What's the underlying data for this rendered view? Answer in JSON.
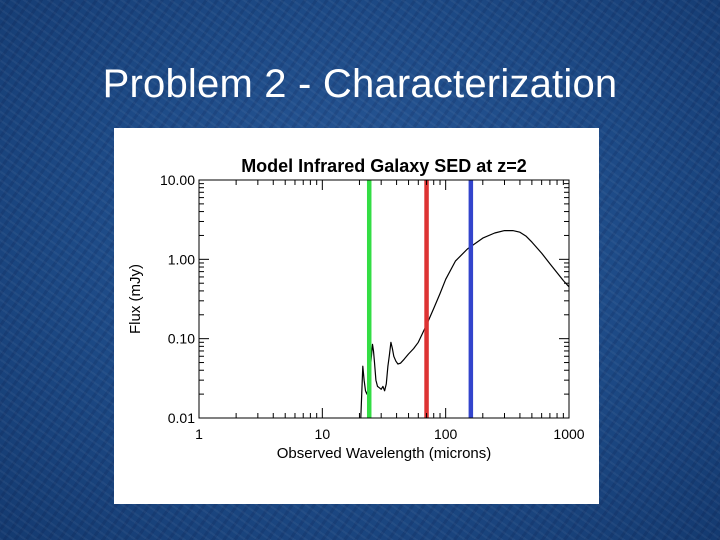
{
  "slide": {
    "title": "Problem 2 - Characterization"
  },
  "colors": {
    "background": "#1d4a86",
    "title_text": "#ffffff",
    "plot_background": "#ffffff",
    "sed_line": "#000000",
    "band_green": "#33dd44",
    "band_red": "#dd3333",
    "band_blue": "#3344cc"
  },
  "chart_data": {
    "type": "line",
    "title": "Model Infrared Galaxy SED at z=2",
    "xlabel": "Observed Wavelength (microns)",
    "ylabel": "Flux (mJy)",
    "x_scale": "log",
    "y_scale": "log",
    "xlim": [
      1,
      1000
    ],
    "ylim": [
      0.01,
      10
    ],
    "x_ticks": [
      {
        "value": 1,
        "label": "1"
      },
      {
        "value": 10,
        "label": "10"
      },
      {
        "value": 100,
        "label": "100"
      },
      {
        "value": 1000,
        "label": "1000"
      }
    ],
    "y_ticks": [
      {
        "value": 0.01,
        "label": "0.01"
      },
      {
        "value": 0.1,
        "label": "0.10"
      },
      {
        "value": 1,
        "label": "1.00"
      },
      {
        "value": 10,
        "label": "10.00"
      }
    ],
    "grid": false,
    "series": [
      {
        "color": "#000000",
        "x": [
          20.5,
          21.3,
          21.8,
          22.4,
          23.0,
          23.5,
          24.0,
          25.0,
          25.5,
          26.0,
          26.5,
          27.2,
          28.0,
          29.0,
          30.0,
          31.0,
          32.0,
          33.0,
          34.0,
          35.0,
          36.0,
          37.0,
          38.0,
          39.5,
          41.0,
          43.0,
          46.0,
          50.0,
          55.0,
          60.0,
          70.0,
          80.0,
          90.0,
          100.0,
          120.0,
          150.0,
          200.0,
          250.0,
          300.0,
          350.0,
          400.0,
          450.0,
          500.0,
          600.0,
          700.0,
          800.0,
          900.0,
          1000.0
        ],
        "y": [
          0.01,
          0.045,
          0.03,
          0.022,
          0.02,
          0.023,
          0.028,
          0.06,
          0.085,
          0.07,
          0.05,
          0.03,
          0.025,
          0.024,
          0.023,
          0.025,
          0.022,
          0.027,
          0.045,
          0.062,
          0.09,
          0.075,
          0.06,
          0.052,
          0.048,
          0.049,
          0.055,
          0.064,
          0.075,
          0.09,
          0.15,
          0.24,
          0.37,
          0.56,
          0.95,
          1.35,
          1.85,
          2.15,
          2.3,
          2.3,
          2.2,
          1.95,
          1.65,
          1.2,
          0.88,
          0.68,
          0.54,
          0.45
        ]
      }
    ],
    "bands": [
      {
        "color": "#33dd44",
        "x": 24
      },
      {
        "color": "#dd3333",
        "x": 70
      },
      {
        "color": "#3344cc",
        "x": 160
      }
    ]
  }
}
